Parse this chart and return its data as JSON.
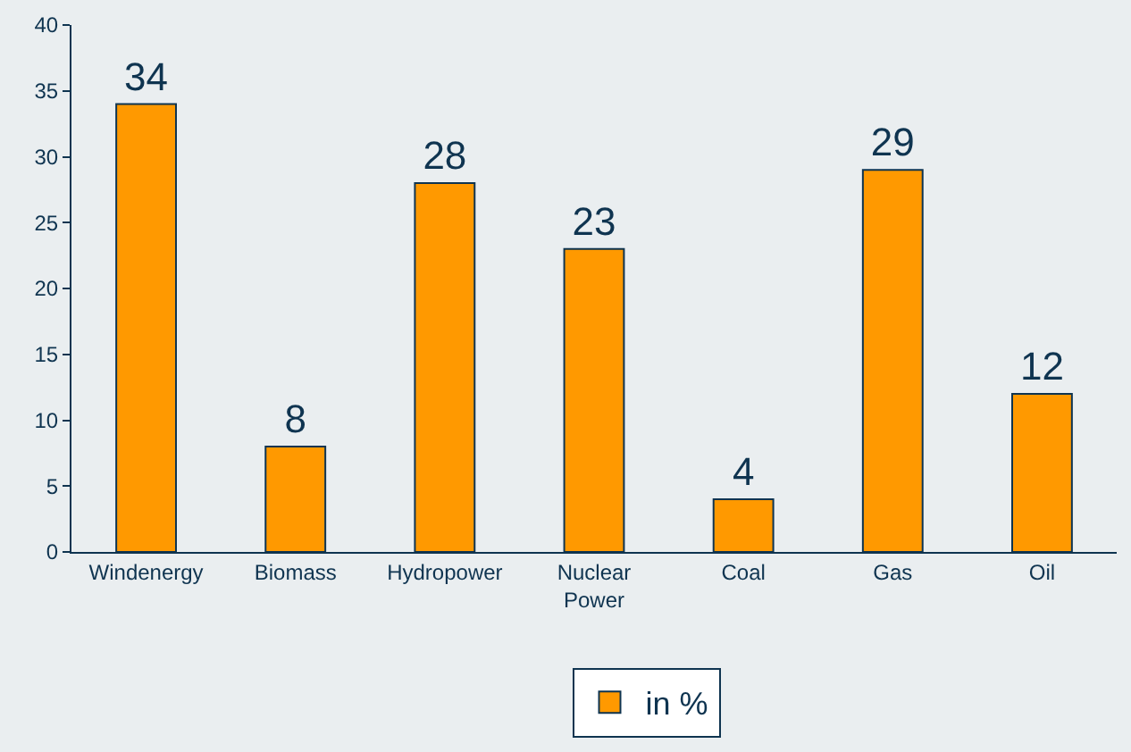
{
  "chart_data": {
    "type": "bar",
    "categories": [
      "Windenergy",
      "Biomass",
      "Hydropower",
      "Nuclear Power",
      "Coal",
      "Gas",
      "Oil"
    ],
    "series": [
      {
        "name": "in %",
        "color": "#ff9900",
        "values": [
          34,
          8,
          28,
          23,
          4,
          29,
          12
        ]
      }
    ],
    "ylim": [
      0,
      40
    ],
    "yticks": [
      0,
      5,
      10,
      15,
      20,
      25,
      30,
      35,
      40
    ],
    "data_labels": true,
    "legend": "bottom",
    "grid": false
  }
}
